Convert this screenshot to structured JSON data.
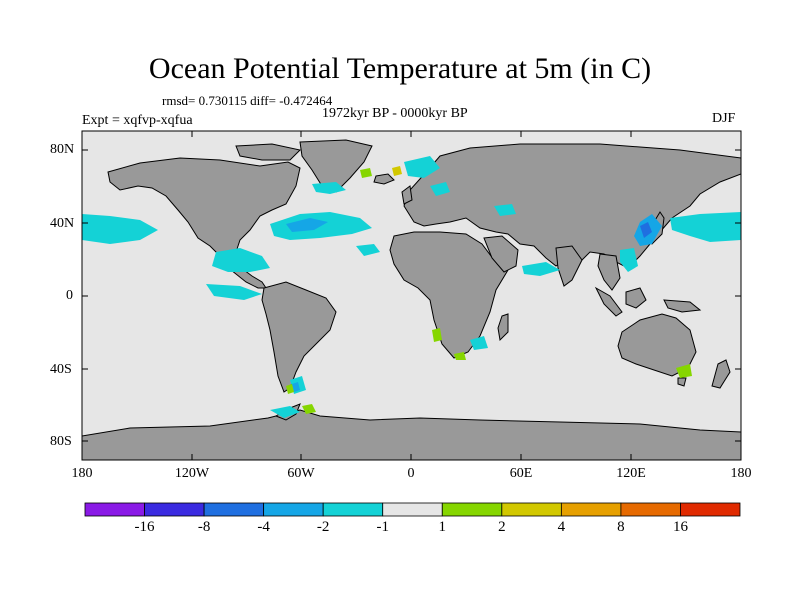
{
  "title": "Ocean Potential Temperature at 5m (in C)",
  "stats": "rmsd= 0.730115 diff= -0.472464",
  "experiment": "Expt = xqfvp-xqfua",
  "period": "1972kyr BP - 0000kyr BP",
  "season": "DJF",
  "axes": {
    "lat_labels": [
      "80N",
      "40N",
      "0",
      "40S",
      "80S"
    ],
    "lon_labels": [
      "180",
      "120W",
      "60W",
      "0",
      "60E",
      "120E",
      "180"
    ]
  },
  "colorbar": {
    "colors": [
      "#8a1ae6",
      "#3a2ae0",
      "#1f6fe0",
      "#15a6e6",
      "#14d2d6",
      "#e6e6e6",
      "#86d600",
      "#d2c800",
      "#e6a000",
      "#e66a00",
      "#e02a00"
    ],
    "labels": [
      "-16",
      "-8",
      "-4",
      "-2",
      "-1",
      "1",
      "2",
      "4",
      "8",
      "16"
    ]
  },
  "colors": {
    "land": "#999999",
    "ocean_neutral": "#e6e6e6",
    "cool": "#14d2d6",
    "cooler": "#15a6e6",
    "coolest": "#1f6fe0",
    "warm": "#86d600",
    "warmer": "#d2c800"
  }
}
